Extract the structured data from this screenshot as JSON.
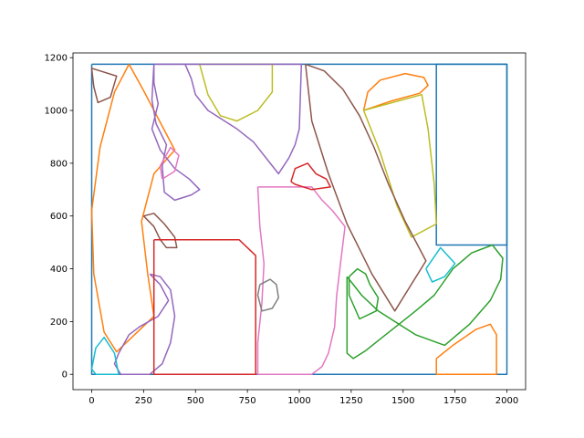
{
  "chart_data": {
    "type": "line",
    "title": "",
    "xlabel": "",
    "ylabel": "",
    "xlim": [
      -90,
      2090
    ],
    "ylim": [
      -58,
      1218
    ],
    "xticks": [
      0,
      250,
      500,
      750,
      1000,
      1250,
      1500,
      1750,
      2000
    ],
    "yticks": [
      0,
      200,
      400,
      600,
      800,
      1000,
      1200
    ],
    "grid": false,
    "legend": "none",
    "series": [
      {
        "color": "#1f77b4",
        "points": [
          [
            0,
            1175
          ],
          [
            2000,
            1175
          ],
          [
            2000,
            0
          ],
          [
            0,
            0
          ],
          [
            0,
            1175
          ]
        ]
      },
      {
        "color": "#1f77b4",
        "points": [
          [
            1660,
            1175
          ],
          [
            2000,
            1175
          ],
          [
            2000,
            490
          ],
          [
            1660,
            490
          ],
          [
            1660,
            1175
          ]
        ]
      },
      {
        "color": "#ff7f0e",
        "points": [
          [
            180,
            1175
          ],
          [
            250,
            1075
          ],
          [
            400,
            850
          ],
          [
            300,
            760
          ],
          [
            240,
            580
          ],
          [
            270,
            380
          ],
          [
            300,
            220
          ],
          [
            120,
            85
          ],
          [
            60,
            160
          ],
          [
            10,
            380
          ],
          [
            0,
            620
          ],
          [
            40,
            860
          ],
          [
            110,
            1070
          ],
          [
            180,
            1175
          ]
        ]
      },
      {
        "color": "#ff7f0e",
        "points": [
          [
            1310,
            1000
          ],
          [
            1330,
            1070
          ],
          [
            1390,
            1115
          ],
          [
            1510,
            1140
          ],
          [
            1600,
            1125
          ],
          [
            1620,
            1095
          ],
          [
            1580,
            1065
          ],
          [
            1440,
            1035
          ],
          [
            1310,
            1000
          ]
        ]
      },
      {
        "color": "#ff7f0e",
        "points": [
          [
            1660,
            60
          ],
          [
            1740,
            110
          ],
          [
            1850,
            170
          ],
          [
            1920,
            190
          ],
          [
            1950,
            150
          ],
          [
            1950,
            0
          ],
          [
            1660,
            0
          ],
          [
            1660,
            60
          ]
        ]
      },
      {
        "color": "#bcbd22",
        "points": [
          [
            520,
            1175
          ],
          [
            870,
            1175
          ],
          [
            870,
            1070
          ],
          [
            800,
            1000
          ],
          [
            700,
            960
          ],
          [
            620,
            980
          ],
          [
            560,
            1060
          ],
          [
            520,
            1175
          ]
        ]
      },
      {
        "color": "#bcbd22",
        "points": [
          [
            1310,
            1000
          ],
          [
            1590,
            1060
          ],
          [
            1620,
            930
          ],
          [
            1650,
            720
          ],
          [
            1660,
            570
          ],
          [
            1540,
            520
          ],
          [
            1470,
            640
          ],
          [
            1390,
            840
          ],
          [
            1310,
            1000
          ]
        ]
      },
      {
        "color": "#9467bd",
        "points": [
          [
            300,
            1175
          ],
          [
            300,
            1105
          ],
          [
            320,
            1025
          ],
          [
            290,
            930
          ],
          [
            330,
            850
          ],
          [
            400,
            780
          ],
          [
            470,
            740
          ],
          [
            520,
            700
          ],
          [
            480,
            680
          ],
          [
            400,
            660
          ],
          [
            350,
            690
          ],
          [
            340,
            790
          ],
          [
            360,
            870
          ],
          [
            310,
            950
          ],
          [
            290,
            1040
          ],
          [
            300,
            1175
          ]
        ]
      },
      {
        "color": "#9467bd",
        "points": [
          [
            300,
            1175
          ],
          [
            450,
            1175
          ],
          [
            480,
            1120
          ],
          [
            500,
            1060
          ],
          [
            560,
            1000
          ],
          [
            640,
            960
          ],
          [
            700,
            930
          ],
          [
            780,
            880
          ],
          [
            820,
            840
          ],
          [
            860,
            800
          ],
          [
            900,
            760
          ],
          [
            950,
            820
          ],
          [
            980,
            870
          ],
          [
            1000,
            930
          ],
          [
            1010,
            1175
          ],
          [
            300,
            1175
          ]
        ]
      },
      {
        "color": "#9467bd",
        "points": [
          [
            280,
            380
          ],
          [
            330,
            340
          ],
          [
            370,
            280
          ],
          [
            320,
            220
          ],
          [
            230,
            180
          ],
          [
            180,
            150
          ],
          [
            130,
            80
          ],
          [
            110,
            40
          ],
          [
            140,
            0
          ],
          [
            280,
            0
          ],
          [
            340,
            40
          ],
          [
            380,
            120
          ],
          [
            400,
            220
          ],
          [
            380,
            320
          ],
          [
            330,
            370
          ],
          [
            280,
            380
          ]
        ]
      },
      {
        "color": "#8c564b",
        "points": [
          [
            1030,
            1175
          ],
          [
            1120,
            1150
          ],
          [
            1210,
            1080
          ],
          [
            1290,
            980
          ],
          [
            1360,
            860
          ],
          [
            1430,
            720
          ],
          [
            1510,
            580
          ],
          [
            1610,
            430
          ],
          [
            1460,
            240
          ],
          [
            1350,
            380
          ],
          [
            1230,
            570
          ],
          [
            1140,
            760
          ],
          [
            1060,
            960
          ],
          [
            1030,
            1175
          ]
        ]
      },
      {
        "color": "#8c564b",
        "points": [
          [
            0,
            1160
          ],
          [
            120,
            1130
          ],
          [
            90,
            1050
          ],
          [
            30,
            1030
          ],
          [
            10,
            1090
          ],
          [
            0,
            1160
          ]
        ]
      },
      {
        "color": "#8c564b",
        "points": [
          [
            250,
            600
          ],
          [
            300,
            610
          ],
          [
            350,
            570
          ],
          [
            400,
            520
          ],
          [
            410,
            480
          ],
          [
            360,
            480
          ],
          [
            330,
            510
          ],
          [
            300,
            560
          ],
          [
            250,
            600
          ]
        ]
      },
      {
        "color": "#e377c2",
        "points": [
          [
            800,
            710
          ],
          [
            1060,
            710
          ],
          [
            1110,
            660
          ],
          [
            1160,
            620
          ],
          [
            1220,
            560
          ],
          [
            1200,
            430
          ],
          [
            1180,
            300
          ],
          [
            1170,
            180
          ],
          [
            1140,
            80
          ],
          [
            1110,
            30
          ],
          [
            1060,
            0
          ],
          [
            800,
            0
          ],
          [
            800,
            120
          ],
          [
            820,
            270
          ],
          [
            830,
            420
          ],
          [
            810,
            560
          ],
          [
            800,
            710
          ]
        ]
      },
      {
        "color": "#e377c2",
        "points": [
          [
            340,
            740
          ],
          [
            400,
            770
          ],
          [
            420,
            830
          ],
          [
            380,
            860
          ],
          [
            330,
            790
          ],
          [
            340,
            740
          ]
        ]
      },
      {
        "color": "#2ca02c",
        "points": [
          [
            1230,
            370
          ],
          [
            1260,
            340
          ],
          [
            1300,
            300
          ],
          [
            1380,
            240
          ],
          [
            1460,
            200
          ],
          [
            1560,
            150
          ],
          [
            1700,
            110
          ],
          [
            1820,
            190
          ],
          [
            1920,
            280
          ],
          [
            1970,
            360
          ],
          [
            1980,
            440
          ],
          [
            1930,
            490
          ],
          [
            1830,
            460
          ],
          [
            1740,
            400
          ],
          [
            1650,
            300
          ],
          [
            1560,
            240
          ],
          [
            1480,
            190
          ],
          [
            1400,
            140
          ],
          [
            1320,
            90
          ],
          [
            1260,
            60
          ],
          [
            1230,
            80
          ],
          [
            1230,
            370
          ]
        ]
      },
      {
        "color": "#2ca02c",
        "points": [
          [
            1240,
            370
          ],
          [
            1280,
            400
          ],
          [
            1320,
            380
          ],
          [
            1340,
            340
          ],
          [
            1380,
            290
          ],
          [
            1370,
            240
          ],
          [
            1290,
            210
          ],
          [
            1240,
            300
          ],
          [
            1240,
            370
          ]
        ]
      },
      {
        "color": "#d62728",
        "points": [
          [
            300,
            510
          ],
          [
            710,
            510
          ],
          [
            790,
            450
          ],
          [
            790,
            0
          ],
          [
            300,
            0
          ],
          [
            300,
            510
          ]
        ]
      },
      {
        "color": "#d62728",
        "points": [
          [
            960,
            730
          ],
          [
            980,
            780
          ],
          [
            1040,
            800
          ],
          [
            1080,
            760
          ],
          [
            1130,
            740
          ],
          [
            1150,
            710
          ],
          [
            1060,
            700
          ],
          [
            980,
            720
          ],
          [
            960,
            730
          ]
        ]
      },
      {
        "color": "#17becf",
        "points": [
          [
            0,
            20
          ],
          [
            20,
            100
          ],
          [
            60,
            140
          ],
          [
            110,
            80
          ],
          [
            130,
            0
          ],
          [
            20,
            0
          ],
          [
            0,
            20
          ]
        ]
      },
      {
        "color": "#17becf",
        "points": [
          [
            1610,
            400
          ],
          [
            1680,
            480
          ],
          [
            1750,
            420
          ],
          [
            1700,
            370
          ],
          [
            1640,
            350
          ],
          [
            1610,
            400
          ]
        ]
      },
      {
        "color": "#7f7f7f",
        "points": [
          [
            810,
            340
          ],
          [
            860,
            360
          ],
          [
            890,
            340
          ],
          [
            900,
            290
          ],
          [
            870,
            250
          ],
          [
            820,
            240
          ],
          [
            800,
            300
          ],
          [
            810,
            340
          ]
        ]
      }
    ]
  }
}
